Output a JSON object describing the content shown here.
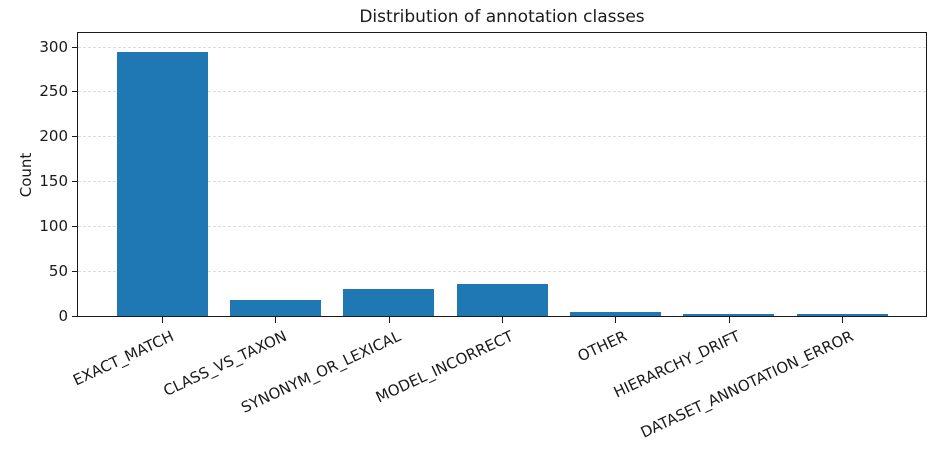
{
  "chart_data": {
    "type": "bar",
    "title": "Distribution of annotation classes",
    "ylabel": "Count",
    "xlabel": "",
    "categories": [
      "EXACT_MATCH",
      "CLASS_VS_TAXON",
      "SYNONYM_OR_LEXICAL",
      "MODEL_INCORRECT",
      "OTHER",
      "HIERARCHY_DRIFT",
      "DATASET_ANNOTATION_ERROR"
    ],
    "values": [
      294,
      18,
      30,
      36,
      5,
      2,
      2
    ],
    "yticks": [
      0,
      50,
      100,
      150,
      200,
      250,
      300
    ],
    "ylim": [
      0,
      315
    ],
    "bar_color": "#1f77b4",
    "grid": {
      "axis": "y",
      "style": "dashed",
      "color": "#dcdcdc"
    },
    "legend": "none",
    "x_tick_rotation_deg": 25,
    "spine_color": "#1a1a1a",
    "background_color": "#ffffff"
  }
}
